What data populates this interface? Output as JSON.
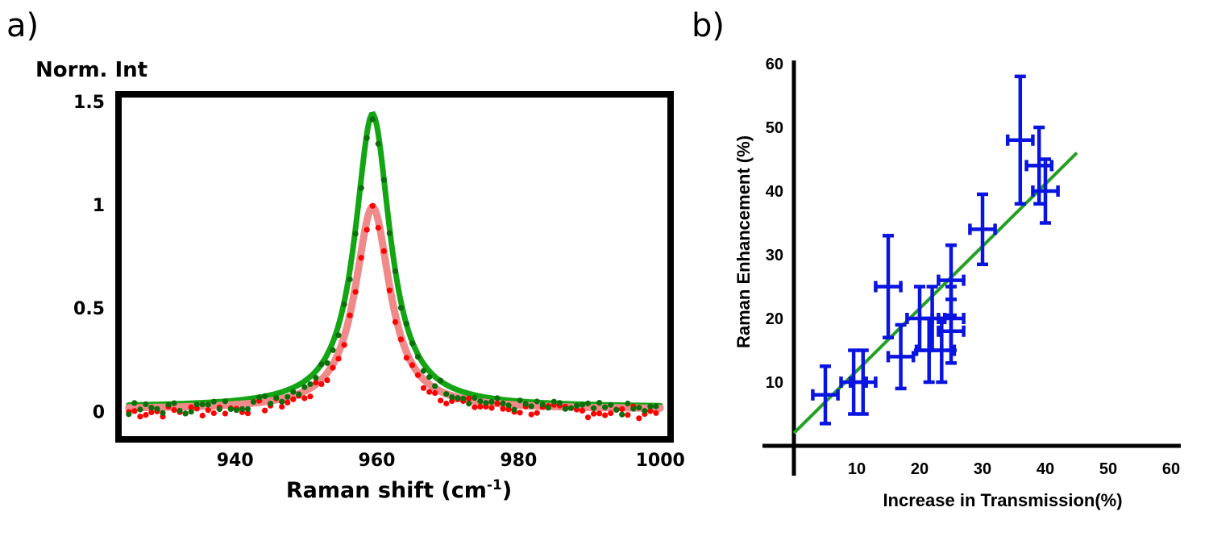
{
  "panels": {
    "a_label": "a)",
    "b_label": "b)"
  },
  "colors": {
    "green_fit": "#14a514",
    "green_dots": "#0d6e0d",
    "red_fit": "#f08a8a",
    "red_dots": "#ff0000",
    "blue_err": "#0a14e0",
    "fit_line_b": "#23a023"
  },
  "chart_data": [
    {
      "type": "line",
      "panel": "a",
      "title": "",
      "ylabel": "Norm. Int",
      "xlabel_main": "Raman shift (cm",
      "xlabel_sup": "-1",
      "xlabel_end": ")",
      "xlim": [
        924,
        1001
      ],
      "ylim": [
        -0.12,
        1.52
      ],
      "xticks": [
        940,
        960,
        980,
        1000
      ],
      "xtick_labels": [
        "940",
        "960",
        "980",
        "1000"
      ],
      "yticks": [
        0,
        0.5,
        1,
        1.5
      ],
      "ytick_labels": [
        "0",
        "0.5",
        "1",
        "1.5"
      ],
      "series": [
        {
          "name": "green (fit + data)",
          "color": "green_fit",
          "peak_center": 959.4,
          "fwhm": 6.0,
          "amplitude": 1.42,
          "baseline": 0.02,
          "x_start": 925,
          "x_end": 1000
        },
        {
          "name": "red (fit + data)",
          "color": "red_fit",
          "peak_center": 959.4,
          "fwhm": 6.0,
          "amplitude": 0.98,
          "baseline": 0.01,
          "x_start": 925,
          "x_end": 1000
        }
      ]
    },
    {
      "type": "scatter",
      "panel": "b",
      "title": "",
      "xlabel": "Increase in Transmission(%)",
      "ylabel": "Raman Enhancement (%)",
      "xlim": [
        0,
        60
      ],
      "ylim": [
        0,
        60
      ],
      "xticks": [
        10,
        20,
        30,
        40,
        50,
        60
      ],
      "xtick_labels": [
        "10",
        "20",
        "30",
        "40",
        "50",
        "60"
      ],
      "yticks": [
        10,
        20,
        30,
        40,
        50,
        60
      ],
      "ytick_labels": [
        "10",
        "20",
        "30",
        "40",
        "50",
        "60"
      ],
      "points": [
        {
          "x": 5,
          "y": 8,
          "xerr": 2,
          "yerr": 4.5
        },
        {
          "x": 9.5,
          "y": 10,
          "xerr": 2,
          "yerr": 5
        },
        {
          "x": 11,
          "y": 10,
          "xerr": 2,
          "yerr": 5
        },
        {
          "x": 15,
          "y": 25,
          "xerr": 2,
          "yerr": 8
        },
        {
          "x": 17,
          "y": 14,
          "xerr": 2,
          "yerr": 5
        },
        {
          "x": 20,
          "y": 20,
          "xerr": 2,
          "yerr": 5
        },
        {
          "x": 21.5,
          "y": 15,
          "xerr": 2,
          "yerr": 5
        },
        {
          "x": 22,
          "y": 20,
          "xerr": 2,
          "yerr": 5
        },
        {
          "x": 23.5,
          "y": 15,
          "xerr": 2,
          "yerr": 5
        },
        {
          "x": 25,
          "y": 26,
          "xerr": 2,
          "yerr": 5.5
        },
        {
          "x": 25,
          "y": 20,
          "xerr": 2,
          "yerr": 5
        },
        {
          "x": 25,
          "y": 18,
          "xerr": 2,
          "yerr": 5
        },
        {
          "x": 30,
          "y": 34,
          "xerr": 2,
          "yerr": 5.5
        },
        {
          "x": 36,
          "y": 48,
          "xerr": 2,
          "yerr": 10
        },
        {
          "x": 39,
          "y": 44,
          "xerr": 2,
          "yerr": 6
        },
        {
          "x": 40,
          "y": 40,
          "xerr": 2,
          "yerr": 5
        }
      ],
      "fit_line": {
        "x": [
          0,
          45
        ],
        "y": [
          2,
          46
        ]
      }
    }
  ]
}
